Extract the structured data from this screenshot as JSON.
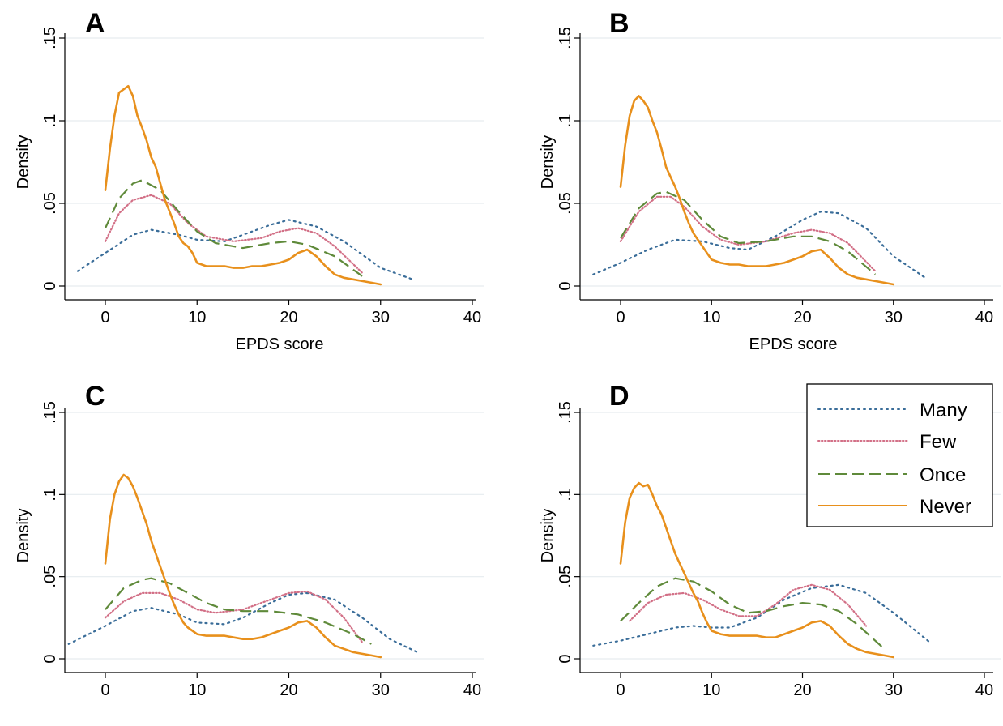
{
  "chart_data": [
    {
      "type": "line",
      "panel_label": "A",
      "xlabel": "EPDS score",
      "ylabel": "Density",
      "xlim": [
        -5,
        42
      ],
      "ylim": [
        0,
        0.15
      ],
      "xticks": [
        "0",
        "10",
        "20",
        "30",
        "40"
      ],
      "yticks": [
        "0",
        ".05",
        ".1",
        ".15"
      ],
      "grid": true,
      "series": [
        {
          "name": "Many",
          "x": [
            -3,
            0,
            3,
            5,
            8,
            10,
            13,
            15,
            18,
            20,
            23,
            26,
            30,
            33.5
          ],
          "y": [
            0.009,
            0.02,
            0.031,
            0.034,
            0.031,
            0.028,
            0.027,
            0.031,
            0.037,
            0.04,
            0.036,
            0.027,
            0.011,
            0.004
          ]
        },
        {
          "name": "Few",
          "x": [
            0,
            1.5,
            3,
            5,
            7,
            9,
            11,
            14,
            17,
            19,
            21,
            23,
            25,
            28
          ],
          "y": [
            0.027,
            0.044,
            0.052,
            0.055,
            0.05,
            0.038,
            0.03,
            0.027,
            0.029,
            0.033,
            0.035,
            0.032,
            0.024,
            0.008
          ]
        },
        {
          "name": "Once",
          "x": [
            0,
            1.5,
            3,
            4,
            6,
            8,
            10,
            12,
            15,
            18,
            20,
            22,
            25,
            28
          ],
          "y": [
            0.035,
            0.053,
            0.062,
            0.064,
            0.058,
            0.045,
            0.033,
            0.026,
            0.023,
            0.026,
            0.027,
            0.025,
            0.018,
            0.006
          ]
        },
        {
          "name": "Never",
          "x": [
            0,
            0.5,
            1,
            1.5,
            2,
            2.5,
            3,
            3.5,
            4,
            4.5,
            5,
            5.5,
            6,
            6.5,
            7,
            7.5,
            8,
            8.5,
            9,
            9.5,
            10,
            11,
            12,
            13,
            14,
            15,
            16,
            17,
            18,
            19,
            20,
            21,
            22,
            23,
            24,
            25,
            26,
            27,
            28,
            29,
            30
          ],
          "y": [
            0.058,
            0.083,
            0.103,
            0.117,
            0.119,
            0.121,
            0.115,
            0.103,
            0.096,
            0.088,
            0.078,
            0.072,
            0.062,
            0.052,
            0.045,
            0.038,
            0.03,
            0.026,
            0.024,
            0.02,
            0.014,
            0.012,
            0.012,
            0.012,
            0.011,
            0.011,
            0.012,
            0.012,
            0.013,
            0.014,
            0.016,
            0.02,
            0.022,
            0.018,
            0.012,
            0.007,
            0.005,
            0.004,
            0.003,
            0.002,
            0.001
          ]
        }
      ]
    },
    {
      "type": "line",
      "panel_label": "B",
      "xlabel": "EPDS score",
      "ylabel": "Density",
      "xlim": [
        -5,
        42
      ],
      "ylim": [
        0,
        0.15
      ],
      "xticks": [
        "0",
        "10",
        "20",
        "30",
        "40"
      ],
      "yticks": [
        "0",
        ".05",
        ".1",
        ".15"
      ],
      "grid": true,
      "series": [
        {
          "name": "Many",
          "x": [
            -3,
            0,
            3,
            6,
            9,
            12,
            14,
            17,
            20,
            22,
            24,
            27,
            30,
            33.5
          ],
          "y": [
            0.007,
            0.014,
            0.022,
            0.028,
            0.027,
            0.023,
            0.022,
            0.03,
            0.04,
            0.045,
            0.044,
            0.035,
            0.018,
            0.005
          ]
        },
        {
          "name": "Few",
          "x": [
            0,
            2,
            4,
            5.5,
            7,
            9,
            11,
            13,
            16,
            19,
            21,
            23,
            25,
            28
          ],
          "y": [
            0.027,
            0.045,
            0.054,
            0.054,
            0.048,
            0.036,
            0.028,
            0.025,
            0.027,
            0.032,
            0.034,
            0.032,
            0.026,
            0.009
          ]
        },
        {
          "name": "Once",
          "x": [
            0,
            2,
            4,
            5,
            7,
            9,
            11,
            13,
            16,
            19,
            21,
            23,
            25,
            28
          ],
          "y": [
            0.029,
            0.047,
            0.056,
            0.057,
            0.052,
            0.04,
            0.03,
            0.026,
            0.027,
            0.03,
            0.03,
            0.027,
            0.021,
            0.007
          ]
        },
        {
          "name": "Never",
          "x": [
            0,
            0.5,
            1,
            1.5,
            2,
            2.5,
            3,
            3.5,
            4,
            4.5,
            5,
            5.5,
            6,
            6.5,
            7,
            7.5,
            8,
            8.5,
            9,
            9.5,
            10,
            11,
            12,
            13,
            14,
            15,
            16,
            17,
            18,
            19,
            20,
            21,
            22,
            23,
            24,
            25,
            26,
            27,
            28,
            29,
            30
          ],
          "y": [
            0.06,
            0.085,
            0.103,
            0.112,
            0.115,
            0.112,
            0.108,
            0.1,
            0.093,
            0.083,
            0.072,
            0.066,
            0.06,
            0.053,
            0.045,
            0.038,
            0.032,
            0.028,
            0.024,
            0.02,
            0.016,
            0.014,
            0.013,
            0.013,
            0.012,
            0.012,
            0.012,
            0.013,
            0.014,
            0.016,
            0.018,
            0.021,
            0.022,
            0.017,
            0.011,
            0.007,
            0.005,
            0.004,
            0.003,
            0.002,
            0.001
          ]
        }
      ]
    },
    {
      "type": "line",
      "panel_label": "C",
      "xlabel": "",
      "ylabel": "Density",
      "xlim": [
        -5,
        42
      ],
      "ylim": [
        0,
        0.15
      ],
      "xticks": [
        "0",
        "10",
        "20",
        "30",
        "40"
      ],
      "yticks": [
        "0",
        ".05",
        ".1",
        ".15"
      ],
      "grid": true,
      "series": [
        {
          "name": "Many",
          "x": [
            -4,
            0,
            3,
            5,
            8,
            10,
            13,
            15,
            18,
            20,
            22,
            25,
            28,
            31,
            34
          ],
          "y": [
            0.009,
            0.02,
            0.029,
            0.031,
            0.027,
            0.022,
            0.021,
            0.025,
            0.034,
            0.039,
            0.04,
            0.036,
            0.025,
            0.012,
            0.004
          ]
        },
        {
          "name": "Few",
          "x": [
            0,
            2,
            4,
            6,
            8,
            10,
            12,
            15,
            18,
            20,
            22,
            24,
            26,
            28
          ],
          "y": [
            0.025,
            0.035,
            0.04,
            0.04,
            0.036,
            0.03,
            0.028,
            0.03,
            0.036,
            0.04,
            0.041,
            0.036,
            0.025,
            0.01
          ]
        },
        {
          "name": "Once",
          "x": [
            0,
            2,
            4,
            5,
            7,
            9,
            11,
            13,
            15,
            18,
            21,
            24,
            27,
            29
          ],
          "y": [
            0.03,
            0.043,
            0.048,
            0.049,
            0.046,
            0.04,
            0.034,
            0.03,
            0.029,
            0.029,
            0.027,
            0.022,
            0.015,
            0.009
          ]
        },
        {
          "name": "Never",
          "x": [
            0,
            0.5,
            1,
            1.5,
            2,
            2.5,
            3,
            3.5,
            4,
            4.5,
            5,
            5.5,
            6,
            6.5,
            7,
            7.5,
            8,
            8.5,
            9,
            9.5,
            10,
            11,
            12,
            13,
            14,
            15,
            16,
            17,
            18,
            19,
            20,
            21,
            22,
            23,
            24,
            25,
            26,
            27,
            28,
            29,
            30
          ],
          "y": [
            0.058,
            0.085,
            0.1,
            0.108,
            0.112,
            0.11,
            0.105,
            0.098,
            0.09,
            0.082,
            0.072,
            0.064,
            0.056,
            0.048,
            0.04,
            0.033,
            0.027,
            0.022,
            0.019,
            0.017,
            0.015,
            0.014,
            0.014,
            0.014,
            0.013,
            0.012,
            0.012,
            0.013,
            0.015,
            0.017,
            0.019,
            0.022,
            0.023,
            0.019,
            0.013,
            0.008,
            0.006,
            0.004,
            0.003,
            0.002,
            0.001
          ]
        }
      ]
    },
    {
      "type": "line",
      "panel_label": "D",
      "xlabel": "",
      "ylabel": "Density",
      "xlim": [
        -5,
        42
      ],
      "ylim": [
        0,
        0.15
      ],
      "xticks": [
        "0",
        "10",
        "20",
        "30",
        "40"
      ],
      "yticks": [
        "0",
        ".05",
        ".1",
        ".15"
      ],
      "grid": true,
      "legend_position": "top-right",
      "legend": [
        "Many",
        "Few",
        "Once",
        "Never"
      ],
      "series": [
        {
          "name": "Many",
          "x": [
            -3,
            0,
            3,
            6,
            8,
            10,
            12,
            15,
            18,
            21,
            24,
            27,
            30,
            34
          ],
          "y": [
            0.008,
            0.011,
            0.015,
            0.019,
            0.02,
            0.019,
            0.019,
            0.025,
            0.036,
            0.043,
            0.045,
            0.04,
            0.028,
            0.01
          ]
        },
        {
          "name": "Few",
          "x": [
            1,
            3,
            5,
            7,
            9,
            11,
            13,
            15,
            17,
            19,
            21,
            23,
            25,
            27
          ],
          "y": [
            0.023,
            0.034,
            0.039,
            0.04,
            0.036,
            0.03,
            0.026,
            0.026,
            0.033,
            0.042,
            0.045,
            0.042,
            0.033,
            0.02
          ]
        },
        {
          "name": "Once",
          "x": [
            0,
            2,
            4,
            6,
            8,
            10,
            12,
            14,
            16,
            18,
            20,
            22,
            24,
            26,
            28,
            29
          ],
          "y": [
            0.023,
            0.034,
            0.044,
            0.049,
            0.047,
            0.041,
            0.033,
            0.028,
            0.029,
            0.032,
            0.034,
            0.033,
            0.029,
            0.021,
            0.011,
            0.006
          ]
        },
        {
          "name": "Never",
          "x": [
            0,
            0.5,
            1,
            1.5,
            2,
            2.5,
            3,
            3.5,
            4,
            4.5,
            5,
            5.5,
            6,
            6.5,
            7,
            7.5,
            8,
            8.5,
            9,
            9.5,
            10,
            11,
            12,
            13,
            14,
            15,
            16,
            17,
            18,
            19,
            20,
            21,
            22,
            23,
            24,
            25,
            26,
            27,
            28,
            29,
            30
          ],
          "y": [
            0.058,
            0.083,
            0.098,
            0.104,
            0.107,
            0.105,
            0.106,
            0.1,
            0.093,
            0.088,
            0.08,
            0.072,
            0.064,
            0.058,
            0.052,
            0.046,
            0.04,
            0.035,
            0.028,
            0.022,
            0.017,
            0.015,
            0.014,
            0.014,
            0.014,
            0.014,
            0.013,
            0.013,
            0.015,
            0.017,
            0.019,
            0.022,
            0.023,
            0.02,
            0.014,
            0.009,
            0.006,
            0.004,
            0.003,
            0.002,
            0.001
          ]
        }
      ]
    }
  ],
  "styles": {
    "Many": {
      "color": "#3a6d99",
      "dash": "2,5"
    },
    "Few": {
      "color": "#d26f86",
      "dash": "1.5,2.5"
    },
    "Once": {
      "color": "#5f8a3a",
      "dash": "14,7"
    },
    "Never": {
      "color": "#e8901c",
      "dash": ""
    },
    "grid_color": "#e6ecef"
  }
}
